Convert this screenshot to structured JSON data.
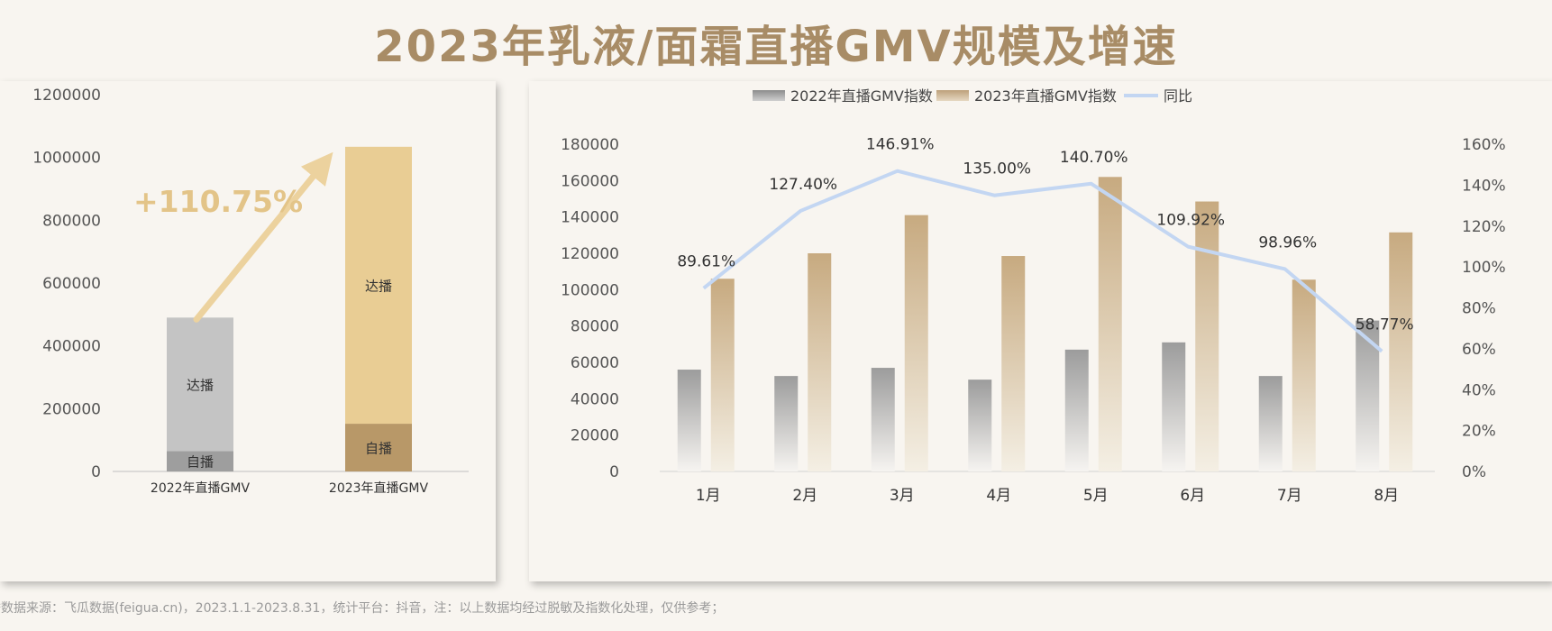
{
  "page": {
    "title": "2023年乳液/面霜直播GMV规模及增速",
    "footer": "*数据来源：飞瓜数据(feigua.cn)，2023.1.1-2023.8.31，统计平台：抖音，注：以上数据均经过脱敏及指数化处理，仅供参考；"
  },
  "colors": {
    "title": "#a88c66",
    "self_2022": "#9e9e9e",
    "talent_2022": "#c4c4c4",
    "self_2023": "#b89868",
    "talent_2023": "#e9cd94",
    "arrow": "#ecd29e",
    "growth_label": "#e3c488",
    "series_2022": "#a8a8a8",
    "series_2023": "#c9ad86",
    "yoy_line": "#c3d6f2"
  },
  "chart_data": [
    {
      "type": "bar",
      "stacked": true,
      "categories": [
        "2022年直播GMV",
        "2023年直播GMV"
      ],
      "series": [
        {
          "name": "自播",
          "values": [
            65000,
            152000
          ]
        },
        {
          "name": "达播",
          "values": [
            425000,
            882000
          ]
        }
      ],
      "ylim": [
        0,
        1200000
      ],
      "yticks": [
        0,
        200000,
        400000,
        600000,
        800000,
        1000000,
        1200000
      ],
      "annotation": "+110.75%",
      "grid": false
    },
    {
      "type": "bar",
      "categories": [
        "1月",
        "2月",
        "3月",
        "4月",
        "5月",
        "6月",
        "7月",
        "8月"
      ],
      "series": [
        {
          "name": "2022年直播GMV指数",
          "type": "bar",
          "values": [
            56000,
            52500,
            57000,
            50500,
            67000,
            71000,
            52500,
            83000
          ]
        },
        {
          "name": "2023年直播GMV指数",
          "type": "bar",
          "values": [
            106000,
            120000,
            141000,
            118500,
            162000,
            148500,
            105500,
            131500
          ]
        },
        {
          "name": "同比",
          "type": "line",
          "axis": "right",
          "values": [
            89.61,
            127.4,
            146.91,
            135.0,
            140.7,
            109.92,
            98.96,
            58.77
          ],
          "labels": [
            "89.61%",
            "127.40%",
            "146.91%",
            "135.00%",
            "140.70%",
            "109.92%",
            "98.96%",
            "58.77%"
          ]
        }
      ],
      "ylim": [
        0,
        180000
      ],
      "yticks": [
        0,
        20000,
        40000,
        60000,
        80000,
        100000,
        120000,
        140000,
        160000,
        180000
      ],
      "y2lim": [
        0,
        160
      ],
      "y2ticks": [
        "0%",
        "20%",
        "40%",
        "60%",
        "80%",
        "100%",
        "120%",
        "140%",
        "160%"
      ],
      "legend": "top-center",
      "grid": false
    }
  ]
}
